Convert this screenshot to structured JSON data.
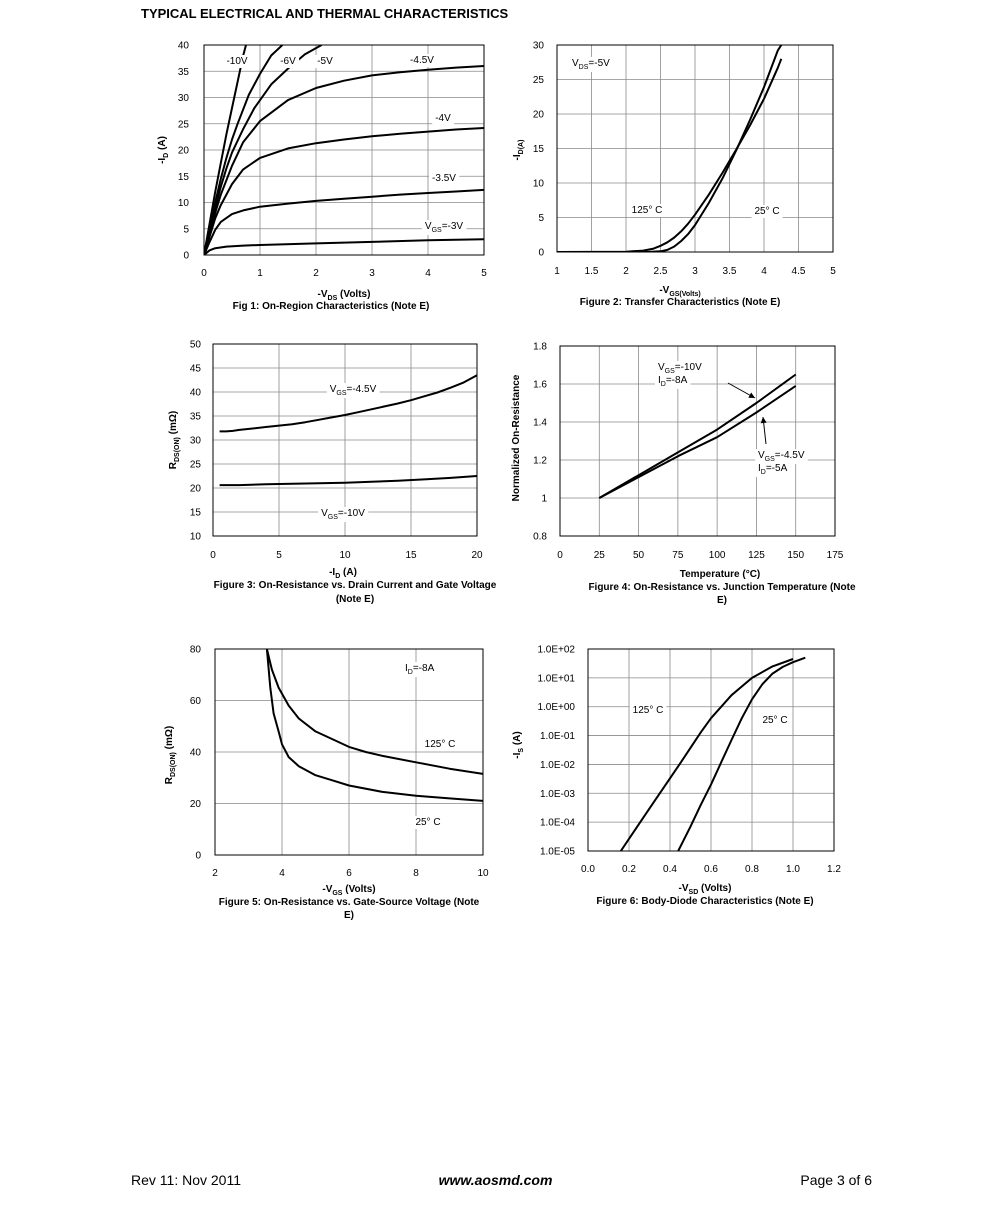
{
  "page": {
    "title": "TYPICAL ELECTRICAL AND THERMAL CHARACTERISTICS",
    "footer_left": "Rev 11: Nov 2011",
    "footer_center": "www.aosmd.com",
    "footer_right": "Page 3 of 6"
  },
  "chart_data": [
    {
      "id": "fig1",
      "type": "line",
      "title": "Fig 1: On-Region Characteristics (Note E)",
      "xlabel": "-V_DS (Volts)",
      "ylabel": "-I_D (A)",
      "xlim": [
        0,
        5
      ],
      "ylim": [
        0,
        40
      ],
      "xticks": [
        0,
        1,
        2,
        3,
        4,
        5
      ],
      "yticks": [
        0,
        5,
        10,
        15,
        20,
        25,
        30,
        35,
        40
      ],
      "grid": true,
      "series": [
        {
          "name": "-10V",
          "x": [
            0,
            0.1,
            0.2,
            0.3,
            0.4,
            0.5,
            0.6,
            0.7,
            0.75
          ],
          "y": [
            0,
            6,
            12,
            17.5,
            23,
            28,
            33,
            38,
            40
          ]
        },
        {
          "name": "-6V",
          "x": [
            0,
            0.1,
            0.2,
            0.3,
            0.4,
            0.5,
            0.6,
            0.8,
            1.0,
            1.2,
            1.4
          ],
          "y": [
            0,
            5,
            10,
            14.5,
            18.5,
            22,
            25,
            30.5,
            34.5,
            38,
            40
          ]
        },
        {
          "name": "-5V",
          "x": [
            0,
            0.1,
            0.2,
            0.3,
            0.4,
            0.5,
            0.7,
            0.9,
            1.2,
            1.5,
            1.8,
            2.1
          ],
          "y": [
            0,
            4.5,
            9,
            13,
            16.5,
            19.5,
            24,
            28,
            32.5,
            35.5,
            38.2,
            40
          ]
        },
        {
          "name": "-4.5V",
          "x": [
            0,
            0.1,
            0.2,
            0.3,
            0.5,
            0.7,
            1.0,
            1.5,
            2.0,
            2.5,
            3.0,
            3.5,
            4.0,
            4.5,
            5.0
          ],
          "y": [
            0,
            4,
            8,
            11.5,
            17,
            21.5,
            25.5,
            29.5,
            31.8,
            33.2,
            34.2,
            34.8,
            35.3,
            35.7,
            36
          ]
        },
        {
          "name": "-4V",
          "x": [
            0,
            0.1,
            0.2,
            0.3,
            0.5,
            0.7,
            1.0,
            1.5,
            2.0,
            2.5,
            3.0,
            3.5,
            4.0,
            4.5,
            5.0
          ],
          "y": [
            0,
            3.5,
            7,
            9.5,
            13.5,
            16.3,
            18.5,
            20.3,
            21.3,
            22,
            22.6,
            23.1,
            23.5,
            23.9,
            24.2
          ]
        },
        {
          "name": "-3.5V",
          "x": [
            0,
            0.1,
            0.2,
            0.3,
            0.5,
            0.7,
            1.0,
            1.5,
            2.0,
            2.5,
            3.0,
            3.5,
            4.0,
            4.5,
            5.0
          ],
          "y": [
            0,
            2.5,
            4.8,
            6.3,
            7.8,
            8.5,
            9.2,
            9.8,
            10.3,
            10.7,
            11.1,
            11.5,
            11.8,
            12.1,
            12.4
          ]
        },
        {
          "name": "V_GS=-3V",
          "x": [
            0,
            0.1,
            0.2,
            0.4,
            0.7,
            1.0,
            2.0,
            3.0,
            4.0,
            5.0
          ],
          "y": [
            0,
            0.9,
            1.3,
            1.6,
            1.8,
            1.9,
            2.2,
            2.5,
            2.8,
            3.0
          ]
        }
      ],
      "annotations": [
        "-10V",
        "-6V",
        "-5V",
        "-4.5V",
        "-4V",
        "-3.5V",
        "V_GS=-3V"
      ]
    },
    {
      "id": "fig2",
      "type": "line",
      "title": "Figure 2: Transfer Characteristics (Note E)",
      "xlabel": "-V_GS(Volts)",
      "ylabel": "-I_D(A)",
      "xlim": [
        1,
        5
      ],
      "ylim": [
        0,
        30
      ],
      "xticks": [
        1,
        1.5,
        2,
        2.5,
        3,
        3.5,
        4,
        4.5,
        5
      ],
      "yticks": [
        0,
        5,
        10,
        15,
        20,
        25,
        30
      ],
      "grid": true,
      "series": [
        {
          "name": "125° C",
          "x": [
            1.0,
            2.0,
            2.25,
            2.4,
            2.5,
            2.6,
            2.7,
            2.8,
            2.9,
            3.0,
            3.2,
            3.4,
            3.6,
            3.8,
            4.0,
            4.2,
            4.25
          ],
          "y": [
            0,
            0.05,
            0.2,
            0.5,
            0.9,
            1.4,
            2.1,
            3.0,
            4.1,
            5.4,
            8.3,
            11.5,
            14.9,
            18.4,
            22.2,
            26.7,
            28
          ]
        },
        {
          "name": "25° C",
          "x": [
            1.0,
            2.3,
            2.5,
            2.6,
            2.7,
            2.8,
            2.9,
            3.0,
            3.2,
            3.4,
            3.6,
            3.8,
            4.0,
            4.2,
            4.25
          ],
          "y": [
            0,
            0,
            0.1,
            0.3,
            0.8,
            1.6,
            2.6,
            3.9,
            7.1,
            10.7,
            14.8,
            19.2,
            23.9,
            29.2,
            30
          ]
        }
      ],
      "annotations": [
        "V_DS=-5V",
        "125° C",
        "25° C"
      ]
    },
    {
      "id": "fig3",
      "type": "line",
      "title": "Figure 3: On-Resistance vs. Drain Current and Gate Voltage (Note E)",
      "xlabel": "-I_D (A)",
      "ylabel": "R_DS(ON) (mΩ)",
      "xlim": [
        0,
        20
      ],
      "ylim": [
        10,
        50
      ],
      "xticks": [
        0,
        5,
        10,
        15,
        20
      ],
      "yticks": [
        10,
        15,
        20,
        25,
        30,
        35,
        40,
        45,
        50
      ],
      "grid": true,
      "series": [
        {
          "name": "V_GS=-4.5V",
          "x": [
            0.5,
            1,
            1.5,
            2,
            3,
            4,
            5,
            6,
            7,
            8,
            9,
            10,
            11,
            12,
            13,
            14,
            15,
            16,
            17,
            18,
            19,
            20
          ],
          "y": [
            31.8,
            31.8,
            31.9,
            32.1,
            32.4,
            32.7,
            33.0,
            33.3,
            33.7,
            34.2,
            34.7,
            35.2,
            35.8,
            36.4,
            37.0,
            37.6,
            38.3,
            39.1,
            39.9,
            40.9,
            42.0,
            43.5
          ]
        },
        {
          "name": "V_GS=-10V",
          "x": [
            0.5,
            2,
            4,
            6,
            8,
            10,
            12,
            14,
            16,
            18,
            20
          ],
          "y": [
            20.6,
            20.6,
            20.8,
            20.9,
            21.0,
            21.1,
            21.3,
            21.5,
            21.8,
            22.1,
            22.5
          ]
        }
      ],
      "annotations": [
        "V_GS=-4.5V",
        "V_GS=-10V"
      ]
    },
    {
      "id": "fig4",
      "type": "line",
      "title": "Figure 4: On-Resistance vs. Junction Temperature (Note E)",
      "xlabel": "Temperature (°C)",
      "ylabel": "Normalized On-Resistance",
      "xlim": [
        0,
        175
      ],
      "ylim": [
        0.8,
        1.8
      ],
      "xticks": [
        0,
        25,
        50,
        75,
        100,
        125,
        150,
        175
      ],
      "yticks": [
        0.8,
        1,
        1.2,
        1.4,
        1.6,
        1.8
      ],
      "ytick_labels": [
        "0.8",
        "1",
        "1.2",
        "1.4",
        "1.6",
        "1.8"
      ],
      "grid": true,
      "series": [
        {
          "name": "V_GS=-10V, I_D=-8A",
          "x": [
            25,
            50,
            75,
            100,
            125,
            150
          ],
          "y": [
            1.0,
            1.12,
            1.24,
            1.36,
            1.5,
            1.65
          ]
        },
        {
          "name": "V_GS=-4.5V, I_D=-5A",
          "x": [
            25,
            50,
            75,
            100,
            125,
            150
          ],
          "y": [
            1.0,
            1.11,
            1.22,
            1.32,
            1.45,
            1.59
          ]
        }
      ],
      "annotations": [
        "V_GS=-10V",
        "I_D=-8A",
        "V_GS=-4.5V",
        "I_D=-5A"
      ]
    },
    {
      "id": "fig5",
      "type": "line",
      "title": "Figure 5: On-Resistance vs. Gate-Source Voltage (Note E)",
      "xlabel": "-V_GS (Volts)",
      "ylabel": "R_DS(ON) (mΩ)",
      "xlim": [
        2,
        10
      ],
      "ylim": [
        0,
        80
      ],
      "xticks": [
        2,
        4,
        6,
        8,
        10
      ],
      "yticks": [
        0,
        20,
        40,
        60,
        80
      ],
      "grid": true,
      "series": [
        {
          "name": "125° C",
          "x": [
            3.55,
            3.7,
            3.9,
            4.2,
            4.5,
            5,
            5.5,
            6,
            6.5,
            7,
            8,
            9,
            10
          ],
          "y": [
            80,
            72,
            65,
            58,
            53,
            48,
            45,
            42,
            40,
            38.5,
            36,
            33.5,
            31.5
          ]
        },
        {
          "name": "25° C",
          "x": [
            3.55,
            3.65,
            3.75,
            3.9,
            4.0,
            4.2,
            4.5,
            5,
            5.5,
            6,
            7,
            8,
            9,
            10
          ],
          "y": [
            80,
            65,
            55,
            48,
            43,
            38,
            34.5,
            31,
            29,
            27,
            24.5,
            23,
            22,
            21
          ]
        }
      ],
      "annotations": [
        "I_D=-8A",
        "125° C",
        "25° C"
      ]
    },
    {
      "id": "fig6",
      "type": "line",
      "yscale": "log",
      "title": "Figure 6: Body-Diode Characteristics (Note E)",
      "xlabel": "-V_SD (Volts)",
      "ylabel": "-I_S (A)",
      "xlim": [
        0,
        1.2
      ],
      "ylim": [
        1e-05,
        100
      ],
      "xticks": [
        0,
        0.2,
        0.4,
        0.6,
        0.8,
        1.0,
        1.2
      ],
      "xtick_labels": [
        "0.0",
        "0.2",
        "0.4",
        "0.6",
        "0.8",
        "1.0",
        "1.2"
      ],
      "yticks": [
        1e-05,
        0.0001,
        0.001,
        0.01,
        0.1,
        1,
        10,
        100
      ],
      "ytick_labels": [
        "1.0E-05",
        "1.0E-04",
        "1.0E-03",
        "1.0E-02",
        "1.0E-01",
        "1.0E+00",
        "1.0E+01",
        "1.0E+02"
      ],
      "grid": true,
      "series": [
        {
          "name": "125° C",
          "x": [
            0.16,
            0.3,
            0.45,
            0.55,
            0.6,
            0.7,
            0.8,
            0.9,
            1.0
          ],
          "y": [
            1e-05,
            0.0003,
            0.011,
            0.13,
            0.4,
            2.5,
            10,
            25,
            45
          ]
        },
        {
          "name": "25° C",
          "x": [
            0.44,
            0.5,
            0.55,
            0.6,
            0.65,
            0.7,
            0.75,
            0.8,
            0.85,
            0.9,
            0.95,
            1.0,
            1.06
          ],
          "y": [
            1e-05,
            7e-05,
            0.0004,
            0.002,
            0.012,
            0.07,
            0.4,
            1.8,
            6,
            14,
            24,
            35,
            50
          ]
        }
      ],
      "annotations": [
        "125° C",
        "25° C"
      ]
    }
  ]
}
